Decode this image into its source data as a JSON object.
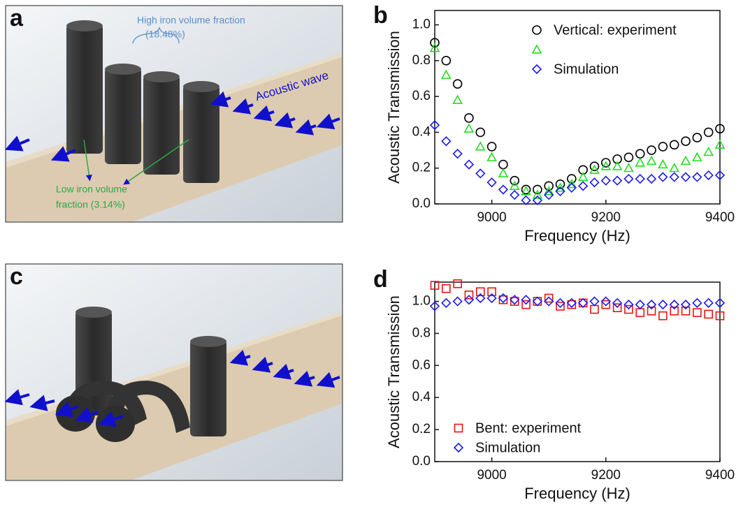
{
  "figure": {
    "panel_labels": [
      "a",
      "b",
      "c",
      "d"
    ],
    "image_a": {
      "annotations": [
        "High iron volume fraction",
        "(18.48%)",
        "Acoustic wave",
        "Low iron volume",
        "fraction (3.14%)"
      ]
    }
  },
  "chart_data": [
    {
      "type": "scatter",
      "ylabel": "Acoustic Transmission",
      "xlabel": "Frequency (Hz)",
      "xlim": [
        8900,
        9400
      ],
      "xticks": [
        9000,
        9200,
        9400
      ],
      "ylim": [
        0,
        1.08
      ],
      "yticks": [
        {
          "value": 0,
          "label": "0.0"
        },
        {
          "value": 0.2,
          "label": "0.2"
        },
        {
          "value": 0.4,
          "label": "0.4"
        },
        {
          "value": 0.6,
          "label": "0.6"
        },
        {
          "value": 0.8,
          "label": "0.8"
        },
        {
          "value": 1.0,
          "label": "1.0"
        }
      ],
      "legend": "upper right",
      "x": [
        8900,
        8920,
        8940,
        8960,
        8980,
        9000,
        9020,
        9040,
        9060,
        9080,
        9100,
        9120,
        9140,
        9160,
        9180,
        9200,
        9220,
        9240,
        9260,
        9280,
        9300,
        9320,
        9340,
        9360,
        9380,
        9400
      ],
      "series": [
        {
          "name": "Vertical: experiment",
          "color": "#000000",
          "marker": "circle",
          "values": [
            0.9,
            0.8,
            0.67,
            0.48,
            0.4,
            0.32,
            0.22,
            0.13,
            0.08,
            0.08,
            0.1,
            0.11,
            0.14,
            0.19,
            0.21,
            0.23,
            0.25,
            0.26,
            0.28,
            0.3,
            0.32,
            0.33,
            0.35,
            0.37,
            0.4,
            0.42
          ]
        },
        {
          "name": "",
          "color": "#22dd22",
          "marker": "triangle",
          "values": [
            0.87,
            0.72,
            0.58,
            0.42,
            0.32,
            0.26,
            0.17,
            0.1,
            0.07,
            0.05,
            0.07,
            0.09,
            0.11,
            0.15,
            0.19,
            0.21,
            0.21,
            0.2,
            0.23,
            0.24,
            0.22,
            0.2,
            0.24,
            0.26,
            0.29,
            0.33
          ]
        },
        {
          "name": "Simulation",
          "color": "#1a1aee",
          "marker": "diamond",
          "values": [
            0.44,
            0.35,
            0.28,
            0.22,
            0.17,
            0.12,
            0.08,
            0.05,
            0.02,
            0.02,
            0.05,
            0.07,
            0.09,
            0.1,
            0.12,
            0.13,
            0.13,
            0.14,
            0.14,
            0.14,
            0.15,
            0.15,
            0.15,
            0.15,
            0.16,
            0.16
          ]
        }
      ]
    },
    {
      "type": "scatter",
      "ylabel": "Acoustic Transmission",
      "xlabel": "Frequency (Hz)",
      "xlim": [
        8900,
        9400
      ],
      "xticks": [
        9000,
        9200,
        9400
      ],
      "ylim": [
        0,
        1.12
      ],
      "yticks": [
        {
          "value": 0,
          "label": "0.0"
        },
        {
          "value": 0.2,
          "label": "0.2"
        },
        {
          "value": 0.4,
          "label": "0.4"
        },
        {
          "value": 0.6,
          "label": "0.6"
        },
        {
          "value": 0.8,
          "label": "0.8"
        },
        {
          "value": 1.0,
          "label": "1.0"
        }
      ],
      "legend": "lower left",
      "x": [
        8900,
        8920,
        8940,
        8960,
        8980,
        9000,
        9020,
        9040,
        9060,
        9080,
        9100,
        9120,
        9140,
        9160,
        9180,
        9200,
        9220,
        9240,
        9260,
        9280,
        9300,
        9320,
        9340,
        9360,
        9380,
        9400
      ],
      "series": [
        {
          "name": "Bent: experiment",
          "color": "#ee1111",
          "marker": "square",
          "values": [
            1.1,
            1.08,
            1.11,
            1.04,
            1.06,
            1.06,
            1.01,
            1.0,
            0.98,
            1.0,
            1.02,
            0.97,
            0.98,
            0.99,
            0.95,
            0.98,
            0.96,
            0.95,
            0.93,
            0.94,
            0.91,
            0.94,
            0.94,
            0.93,
            0.92,
            0.91
          ]
        },
        {
          "name": "Simulation",
          "color": "#1a1aee",
          "marker": "diamond",
          "values": [
            0.97,
            0.99,
            1.0,
            1.01,
            1.02,
            1.02,
            1.02,
            1.01,
            1.01,
            1.0,
            1.0,
            0.99,
            0.99,
            0.99,
            1.0,
            1.0,
            0.99,
            0.98,
            0.98,
            0.98,
            0.98,
            0.98,
            0.98,
            0.99,
            0.99,
            0.99
          ]
        }
      ]
    }
  ]
}
